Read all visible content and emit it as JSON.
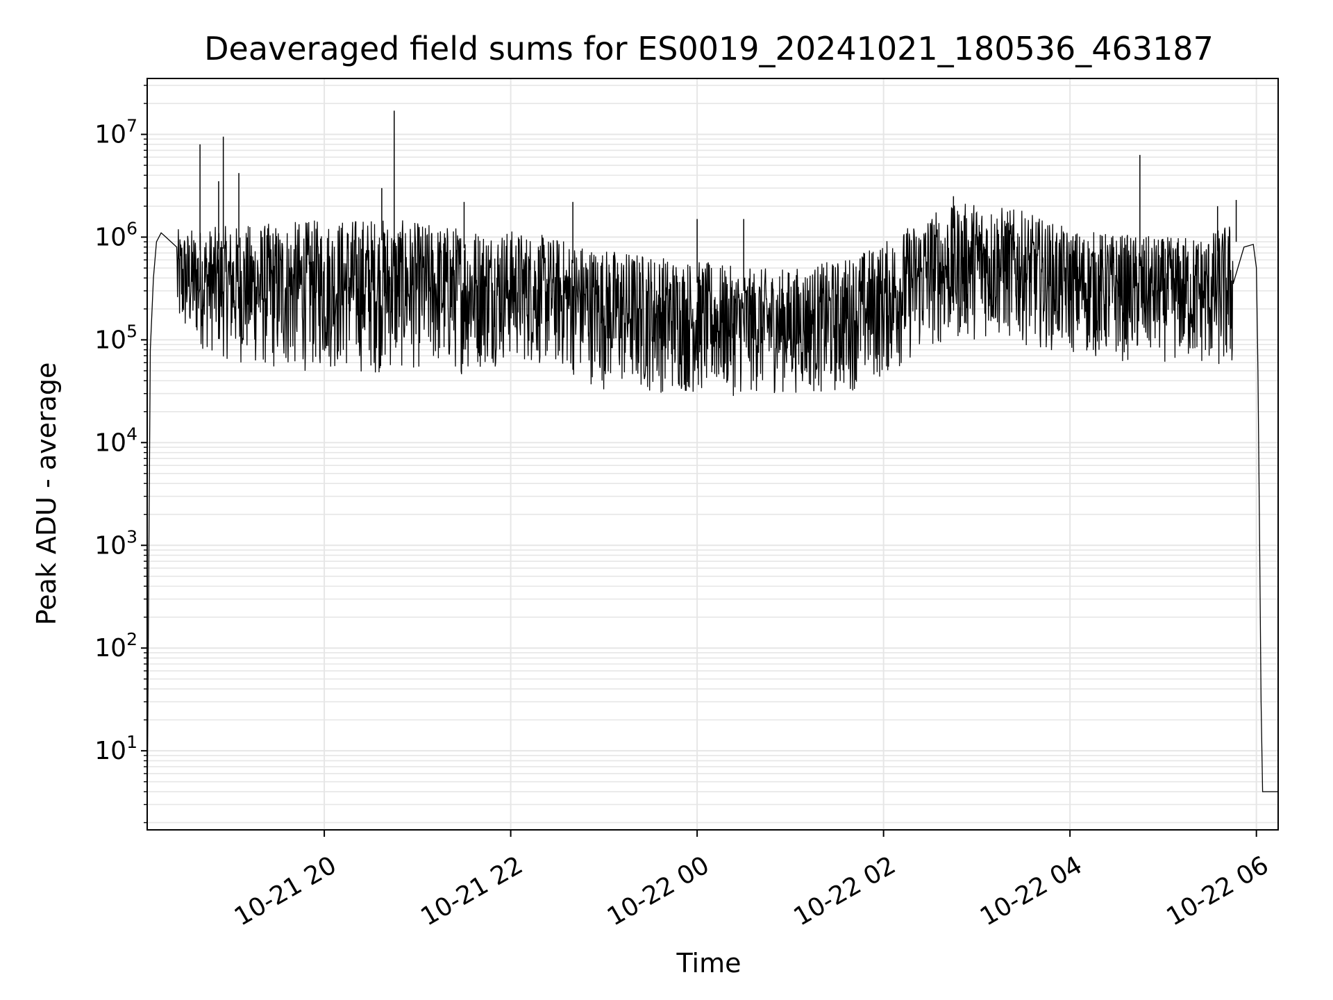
{
  "chart_data": {
    "type": "line",
    "title": "Deaveraged field sums for ES0019_20241021_180536_463187",
    "xlabel": "Time",
    "ylabel": "Peak ADU - average",
    "yscale": "log",
    "ylim": [
      1.7,
      35000000
    ],
    "xlim": [
      "2024-10-21 18:06",
      "2024-10-22 06:14"
    ],
    "grid": true,
    "line_color": "#000000",
    "grid_color": "#e6e6e6",
    "x_ticks": [
      {
        "label": "10-21 20",
        "t": "2024-10-21 20:00"
      },
      {
        "label": "10-21 22",
        "t": "2024-10-21 22:00"
      },
      {
        "label": "10-22 00",
        "t": "2024-10-22 00:00"
      },
      {
        "label": "10-22 02",
        "t": "2024-10-22 02:00"
      },
      {
        "label": "10-22 04",
        "t": "2024-10-22 04:00"
      },
      {
        "label": "10-22 06",
        "t": "2024-10-22 06:00"
      }
    ],
    "y_ticks": [
      {
        "base": "10",
        "exp": "1",
        "value": 10
      },
      {
        "base": "10",
        "exp": "2",
        "value": 100
      },
      {
        "base": "10",
        "exp": "3",
        "value": 1000
      },
      {
        "base": "10",
        "exp": "4",
        "value": 10000
      },
      {
        "base": "10",
        "exp": "5",
        "value": 100000
      },
      {
        "base": "10",
        "exp": "6",
        "value": 1000000
      },
      {
        "base": "10",
        "exp": "7",
        "value": 10000000
      }
    ],
    "series": [
      {
        "x": [
          "2024-10-21 18:06",
          "2024-10-21 18:07",
          "2024-10-21 18:08",
          "2024-10-21 18:10",
          "2024-10-21 18:12",
          "2024-10-21 18:15",
          "2024-10-21 18:18",
          "2024-10-21 18:25",
          "2024-10-21 18:30",
          "2024-10-21 18:36",
          "2024-10-21 18:40",
          "2024-10-21 18:50",
          "2024-10-21 19:00",
          "2024-10-21 19:15",
          "2024-10-21 19:30",
          "2024-10-21 19:45",
          "2024-10-21 20:00",
          "2024-10-21 20:15",
          "2024-10-21 20:30",
          "2024-10-21 20:45",
          "2024-10-21 21:00",
          "2024-10-21 21:15",
          "2024-10-21 21:30",
          "2024-10-21 21:45",
          "2024-10-21 22:00",
          "2024-10-21 22:15",
          "2024-10-21 22:30",
          "2024-10-21 22:45",
          "2024-10-21 23:00",
          "2024-10-21 23:15",
          "2024-10-21 23:30",
          "2024-10-21 23:45",
          "2024-10-22 00:00",
          "2024-10-22 00:15",
          "2024-10-22 00:30",
          "2024-10-22 00:45",
          "2024-10-22 01:00",
          "2024-10-22 01:15",
          "2024-10-22 01:30",
          "2024-10-22 01:45",
          "2024-10-22 02:00",
          "2024-10-22 02:15",
          "2024-10-22 02:30",
          "2024-10-22 02:45",
          "2024-10-22 03:00",
          "2024-10-22 03:15",
          "2024-10-22 03:30",
          "2024-10-22 03:45",
          "2024-10-22 04:00",
          "2024-10-22 04:15",
          "2024-10-22 04:30",
          "2024-10-22 04:45",
          "2024-10-22 05:00",
          "2024-10-22 05:15",
          "2024-10-22 05:30",
          "2024-10-22 05:45",
          "2024-10-22 05:52",
          "2024-10-22 05:58",
          "2024-10-22 06:00",
          "2024-10-22 06:01",
          "2024-10-22 06:02",
          "2024-10-22 06:03",
          "2024-10-22 06:04",
          "2024-10-22 06:14"
        ],
        "y": [
          2,
          500,
          80000,
          400000,
          900000,
          1100000,
          1000000,
          800000,
          600000,
          400000,
          300000,
          250000,
          350000,
          300000,
          280000,
          250000,
          300000,
          320000,
          350000,
          400000,
          350000,
          300000,
          380000,
          350000,
          450000,
          420000,
          250000,
          150000,
          90000,
          70000,
          60000,
          55000,
          50000,
          60000,
          70000,
          50000,
          45000,
          50000,
          55000,
          65000,
          180000,
          400000,
          600000,
          800000,
          700000,
          600000,
          500000,
          450000,
          400000,
          350000,
          380000,
          300000,
          250000,
          280000,
          300000,
          350000,
          800000,
          850000,
          500000,
          50000,
          1500,
          30,
          4,
          4
        ]
      }
    ],
    "envelope": {
      "description_values": "upper and lower noise envelope in data units",
      "x": [
        "2024-10-21 18:25",
        "2024-10-21 19:00",
        "2024-10-21 19:30",
        "2024-10-21 20:00",
        "2024-10-21 20:30",
        "2024-10-21 21:00",
        "2024-10-21 21:30",
        "2024-10-21 22:00",
        "2024-10-21 22:30",
        "2024-10-21 23:00",
        "2024-10-21 23:30",
        "2024-10-22 00:00",
        "2024-10-22 00:30",
        "2024-10-22 01:00",
        "2024-10-22 01:30",
        "2024-10-22 02:00",
        "2024-10-22 02:30",
        "2024-10-22 03:00",
        "2024-10-22 03:30",
        "2024-10-22 04:00",
        "2024-10-22 04:30",
        "2024-10-22 05:00",
        "2024-10-22 05:30",
        "2024-10-22 05:45"
      ],
      "upper": [
        1200000,
        1300000,
        1400000,
        1500000,
        1600000,
        1400000,
        1300000,
        1200000,
        1000000,
        800000,
        700000,
        600000,
        500000,
        500000,
        600000,
        900000,
        1800000,
        2300000,
        1800000,
        1200000,
        1100000,
        1000000,
        1100000,
        1500000
      ],
      "lower": [
        100000,
        60000,
        45000,
        50000,
        45000,
        50000,
        45000,
        60000,
        50000,
        32000,
        30000,
        28000,
        28000,
        30000,
        28000,
        40000,
        80000,
        100000,
        90000,
        70000,
        60000,
        60000,
        50000,
        40000
      ]
    },
    "spikes": [
      {
        "t": "2024-10-21 18:40",
        "value": 8000000
      },
      {
        "t": "2024-10-21 18:55",
        "value": 9500000
      },
      {
        "t": "2024-10-21 18:52",
        "value": 3500000
      },
      {
        "t": "2024-10-21 19:05",
        "value": 4200000
      },
      {
        "t": "2024-10-21 20:37",
        "value": 3000000
      },
      {
        "t": "2024-10-21 20:45",
        "value": 17000000
      },
      {
        "t": "2024-10-21 21:30",
        "value": 2200000
      },
      {
        "t": "2024-10-21 22:40",
        "value": 2200000
      },
      {
        "t": "2024-10-22 00:00",
        "value": 1500000
      },
      {
        "t": "2024-10-22 00:30",
        "value": 1500000
      },
      {
        "t": "2024-10-22 02:45",
        "value": 2500000
      },
      {
        "t": "2024-10-22 04:45",
        "value": 6300000
      },
      {
        "t": "2024-10-22 05:35",
        "value": 2000000
      },
      {
        "t": "2024-10-22 05:47",
        "value": 2300000
      }
    ]
  }
}
